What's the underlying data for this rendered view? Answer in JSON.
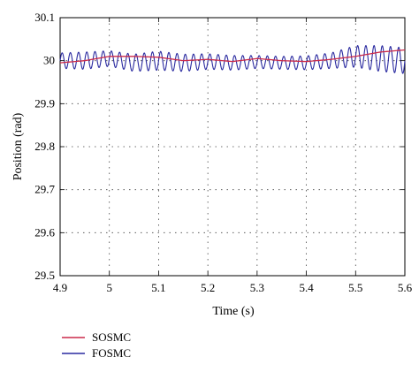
{
  "chart_data": {
    "type": "line",
    "title": "",
    "xlabel": "Time (s)",
    "ylabel": "Position (rad)",
    "xlim": [
      4.9,
      5.6
    ],
    "ylim": [
      29.5,
      30.1
    ],
    "xticks": [
      "4.9",
      "5",
      "5.1",
      "5.2",
      "5.3",
      "5.4",
      "5.5",
      "5.6"
    ],
    "yticks": [
      "29.5",
      "29.6",
      "29.7",
      "29.8",
      "29.9",
      "30",
      "30.1"
    ],
    "grid": true,
    "legend_position": "bottom-left, below plot",
    "series": [
      {
        "name": "SOSMC",
        "color": "#cc2a4a",
        "x": [
          4.9,
          4.95,
          5.0,
          5.05,
          5.1,
          5.15,
          5.2,
          5.25,
          5.3,
          5.35,
          5.4,
          5.45,
          5.5,
          5.55,
          5.6
        ],
        "values": [
          29.995,
          30.0,
          30.01,
          30.01,
          30.008,
          30.0,
          30.003,
          29.998,
          30.005,
          30.0,
          29.998,
          30.003,
          30.01,
          30.02,
          30.025
        ]
      },
      {
        "name": "FOSMC",
        "color": "#2a2aa0",
        "description_of_signal": "oscillation",
        "x": [
          4.9,
          4.95,
          5.0,
          5.05,
          5.1,
          5.15,
          5.2,
          5.25,
          5.3,
          5.35,
          5.4,
          5.45,
          5.5,
          5.55,
          5.6
        ],
        "center": [
          30.0,
          30.0,
          30.005,
          29.995,
          30.0,
          29.995,
          29.998,
          29.995,
          29.997,
          29.995,
          29.995,
          30.0,
          30.01,
          30.005,
          30.0
        ],
        "amplitude": [
          0.018,
          0.02,
          0.018,
          0.02,
          0.022,
          0.02,
          0.018,
          0.017,
          0.015,
          0.015,
          0.016,
          0.018,
          0.025,
          0.03,
          0.03
        ],
        "frequency_hz": 60
      }
    ]
  }
}
